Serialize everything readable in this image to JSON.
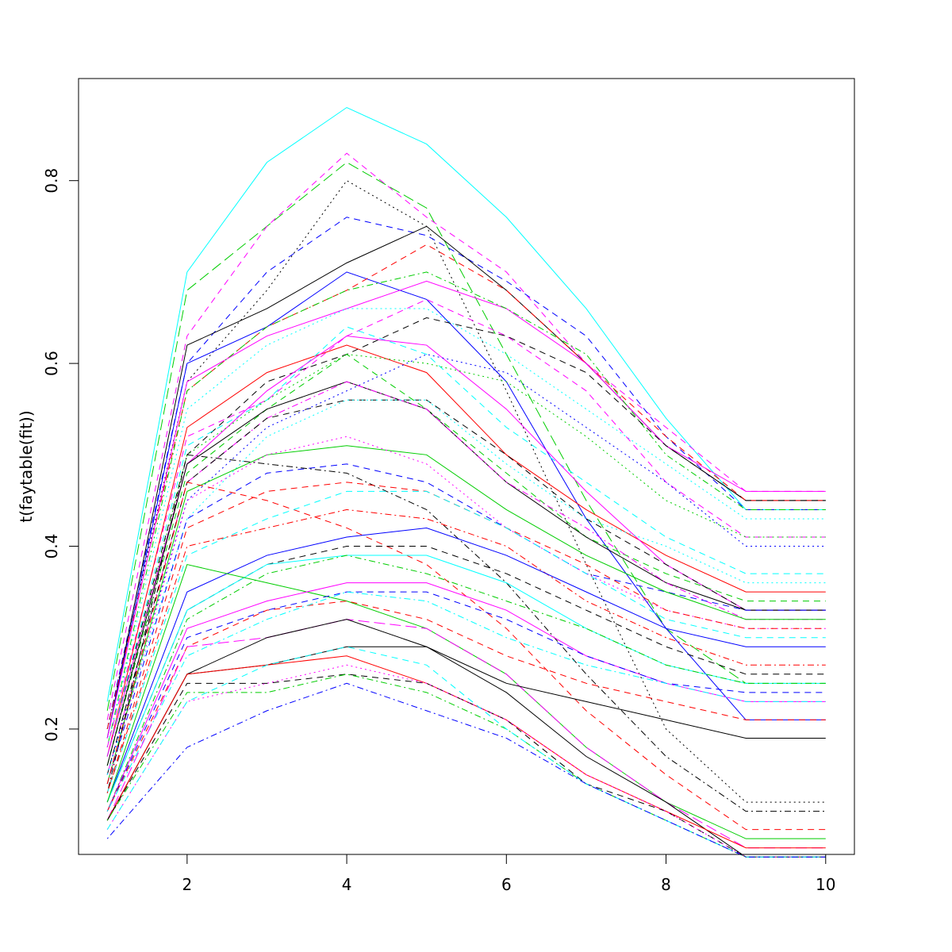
{
  "chart_data": {
    "type": "line",
    "title": "",
    "xlabel": "",
    "ylabel": "t(faytable(fit))",
    "xlim": [
      0.64,
      10.36
    ],
    "ylim": [
      0.0628,
      0.9117
    ],
    "x": [
      1,
      2,
      3,
      4,
      5,
      6,
      7,
      8,
      9,
      10
    ],
    "x_ticks": [
      2,
      4,
      6,
      8,
      10
    ],
    "y_ticks": [
      0.2,
      0.4,
      0.6,
      0.8
    ],
    "x_tick_labels": [
      "2",
      "4",
      "6",
      "8",
      "10"
    ],
    "y_tick_labels": [
      "0.2",
      "0.4",
      "0.6",
      "0.8"
    ],
    "grid": false,
    "legend": "none",
    "colors": [
      "#000000",
      "#ff0000",
      "#00cd00",
      "#0000ff",
      "#00ffff",
      "#ff00ff"
    ],
    "series": [
      {
        "values": [
          0.23,
          0.7,
          0.82,
          0.88,
          0.84,
          0.76,
          0.66,
          0.54,
          0.44,
          0.44
        ],
        "color": "#00ffff",
        "dash": "solid"
      },
      {
        "values": [
          0.22,
          0.68,
          0.75,
          0.82,
          0.77,
          0.61,
          0.45,
          0.31,
          0.25,
          0.25
        ],
        "color": "#00cd00",
        "dash": "longdash"
      },
      {
        "values": [
          0.21,
          0.63,
          0.75,
          0.83,
          0.76,
          0.7,
          0.6,
          0.53,
          0.46,
          0.46
        ],
        "color": "#ff00ff",
        "dash": "dashed"
      },
      {
        "values": [
          0.2,
          0.58,
          0.68,
          0.8,
          0.75,
          0.57,
          0.38,
          0.2,
          0.12,
          0.12
        ],
        "color": "#000000",
        "dash": "dotted"
      },
      {
        "values": [
          0.2,
          0.6,
          0.7,
          0.76,
          0.74,
          0.69,
          0.63,
          0.52,
          0.44,
          0.44
        ],
        "color": "#0000ff",
        "dash": "dashed"
      },
      {
        "values": [
          0.19,
          0.62,
          0.66,
          0.71,
          0.75,
          0.68,
          0.6,
          0.51,
          0.45,
          0.45
        ],
        "color": "#000000",
        "dash": "solid"
      },
      {
        "values": [
          0.19,
          0.6,
          0.64,
          0.7,
          0.67,
          0.58,
          0.43,
          0.31,
          0.21,
          0.21
        ],
        "color": "#0000ff",
        "dash": "solid"
      },
      {
        "values": [
          0.2,
          0.57,
          0.64,
          0.68,
          0.73,
          0.68,
          0.6,
          0.52,
          0.45,
          0.45
        ],
        "color": "#ff0000",
        "dash": "dashed"
      },
      {
        "values": [
          0.19,
          0.58,
          0.63,
          0.66,
          0.69,
          0.66,
          0.6,
          0.51,
          0.46,
          0.46
        ],
        "color": "#ff00ff",
        "dash": "solid"
      },
      {
        "values": [
          0.18,
          0.57,
          0.64,
          0.68,
          0.7,
          0.66,
          0.61,
          0.5,
          0.44,
          0.44
        ],
        "color": "#00cd00",
        "dash": "dotdash"
      },
      {
        "values": [
          0.18,
          0.55,
          0.62,
          0.66,
          0.66,
          0.61,
          0.55,
          0.49,
          0.43,
          0.43
        ],
        "color": "#00ffff",
        "dash": "dotted"
      },
      {
        "values": [
          0.18,
          0.52,
          0.56,
          0.63,
          0.67,
          0.63,
          0.57,
          0.47,
          0.41,
          0.41
        ],
        "color": "#ff00ff",
        "dash": "dashed"
      },
      {
        "values": [
          0.17,
          0.5,
          0.58,
          0.61,
          0.65,
          0.63,
          0.59,
          0.51,
          0.45,
          0.45
        ],
        "color": "#000000",
        "dash": "dashed"
      },
      {
        "values": [
          0.17,
          0.53,
          0.59,
          0.62,
          0.59,
          0.5,
          0.44,
          0.39,
          0.35,
          0.35
        ],
        "color": "#ff0000",
        "dash": "solid"
      },
      {
        "values": [
          0.17,
          0.51,
          0.56,
          0.64,
          0.61,
          0.53,
          0.47,
          0.41,
          0.37,
          0.37
        ],
        "color": "#00ffff",
        "dash": "dashed"
      },
      {
        "values": [
          0.17,
          0.49,
          0.57,
          0.63,
          0.62,
          0.55,
          0.46,
          0.38,
          0.33,
          0.33
        ],
        "color": "#ff00ff",
        "dash": "solid"
      },
      {
        "values": [
          0.16,
          0.5,
          0.56,
          0.61,
          0.6,
          0.58,
          0.52,
          0.45,
          0.41,
          0.41
        ],
        "color": "#00cd00",
        "dash": "dotted"
      },
      {
        "values": [
          0.16,
          0.48,
          0.55,
          0.61,
          0.55,
          0.48,
          0.41,
          0.37,
          0.34,
          0.34
        ],
        "color": "#00cd00",
        "dash": "dashed"
      },
      {
        "values": [
          0.16,
          0.49,
          0.55,
          0.58,
          0.55,
          0.47,
          0.41,
          0.36,
          0.33,
          0.33
        ],
        "color": "#000000",
        "dash": "solid"
      },
      {
        "values": [
          0.15,
          0.47,
          0.54,
          0.58,
          0.55,
          0.47,
          0.42,
          0.36,
          0.32,
          0.32
        ],
        "color": "#ff00ff",
        "dash": "dotdash"
      },
      {
        "values": [
          0.15,
          0.47,
          0.54,
          0.56,
          0.56,
          0.5,
          0.43,
          0.38,
          0.33,
          0.33
        ],
        "color": "#000000",
        "dash": "dashed"
      },
      {
        "values": [
          0.15,
          0.45,
          0.53,
          0.57,
          0.61,
          0.59,
          0.53,
          0.47,
          0.4,
          0.4
        ],
        "color": "#0000ff",
        "dash": "dotted"
      },
      {
        "values": [
          0.15,
          0.43,
          0.52,
          0.56,
          0.56,
          0.49,
          0.43,
          0.4,
          0.36,
          0.36
        ],
        "color": "#00ffff",
        "dash": "dotted"
      },
      {
        "values": [
          0.14,
          0.43,
          0.48,
          0.49,
          0.47,
          0.42,
          0.37,
          0.35,
          0.33,
          0.33
        ],
        "color": "#0000ff",
        "dash": "dashed"
      },
      {
        "values": [
          0.14,
          0.46,
          0.5,
          0.51,
          0.5,
          0.44,
          0.39,
          0.35,
          0.32,
          0.32
        ],
        "color": "#00cd00",
        "dash": "solid"
      },
      {
        "values": [
          0.14,
          0.45,
          0.5,
          0.52,
          0.49,
          0.42,
          0.37,
          0.33,
          0.31,
          0.31
        ],
        "color": "#ff00ff",
        "dash": "dotted"
      },
      {
        "values": [
          0.14,
          0.47,
          0.45,
          0.42,
          0.38,
          0.31,
          0.22,
          0.15,
          0.09,
          0.09
        ],
        "color": "#ff0000",
        "dash": "dashed"
      },
      {
        "values": [
          0.13,
          0.5,
          0.49,
          0.48,
          0.44,
          0.36,
          0.26,
          0.17,
          0.11,
          0.11
        ],
        "color": "#000000",
        "dash": "dotdash"
      },
      {
        "values": [
          0.13,
          0.42,
          0.46,
          0.47,
          0.46,
          0.42,
          0.38,
          0.33,
          0.31,
          0.31
        ],
        "color": "#ff0000",
        "dash": "dashed"
      },
      {
        "values": [
          0.13,
          0.39,
          0.43,
          0.46,
          0.46,
          0.42,
          0.37,
          0.32,
          0.3,
          0.3
        ],
        "color": "#00ffff",
        "dash": "dashed"
      },
      {
        "values": [
          0.13,
          0.4,
          0.42,
          0.44,
          0.43,
          0.4,
          0.34,
          0.3,
          0.27,
          0.27
        ],
        "color": "#ff0000",
        "dash": "dotdash"
      },
      {
        "values": [
          0.12,
          0.35,
          0.39,
          0.41,
          0.42,
          0.39,
          0.35,
          0.31,
          0.29,
          0.29
        ],
        "color": "#0000ff",
        "dash": "solid"
      },
      {
        "values": [
          0.12,
          0.33,
          0.38,
          0.4,
          0.4,
          0.37,
          0.33,
          0.29,
          0.26,
          0.26
        ],
        "color": "#000000",
        "dash": "dashed"
      },
      {
        "values": [
          0.12,
          0.33,
          0.38,
          0.39,
          0.39,
          0.36,
          0.31,
          0.27,
          0.25,
          0.25
        ],
        "color": "#00ffff",
        "dash": "solid"
      },
      {
        "values": [
          0.12,
          0.38,
          0.36,
          0.34,
          0.31,
          0.26,
          0.18,
          0.12,
          0.08,
          0.08
        ],
        "color": "#00cd00",
        "dash": "solid"
      },
      {
        "values": [
          0.11,
          0.32,
          0.37,
          0.39,
          0.37,
          0.34,
          0.31,
          0.27,
          0.25,
          0.25
        ],
        "color": "#00cd00",
        "dash": "dotdash"
      },
      {
        "values": [
          0.11,
          0.31,
          0.34,
          0.36,
          0.36,
          0.33,
          0.28,
          0.25,
          0.23,
          0.23
        ],
        "color": "#ff00ff",
        "dash": "solid"
      },
      {
        "values": [
          0.11,
          0.3,
          0.33,
          0.35,
          0.35,
          0.32,
          0.28,
          0.25,
          0.24,
          0.24
        ],
        "color": "#0000ff",
        "dash": "dashed"
      },
      {
        "values": [
          0.11,
          0.29,
          0.33,
          0.34,
          0.32,
          0.28,
          0.25,
          0.23,
          0.21,
          0.21
        ],
        "color": "#ff0000",
        "dash": "dashed"
      },
      {
        "values": [
          0.11,
          0.28,
          0.32,
          0.35,
          0.34,
          0.3,
          0.27,
          0.25,
          0.23,
          0.23
        ],
        "color": "#00ffff",
        "dash": "dotdash"
      },
      {
        "values": [
          0.1,
          0.29,
          0.3,
          0.32,
          0.31,
          0.26,
          0.18,
          0.12,
          0.07,
          0.07
        ],
        "color": "#ff00ff",
        "dash": "longdash"
      },
      {
        "values": [
          0.1,
          0.26,
          0.3,
          0.32,
          0.29,
          0.24,
          0.17,
          0.12,
          0.06,
          0.06
        ],
        "color": "#000000",
        "dash": "solid"
      },
      {
        "values": [
          0.1,
          0.26,
          0.27,
          0.29,
          0.29,
          0.25,
          0.23,
          0.21,
          0.19,
          0.19
        ],
        "color": "#000000",
        "dash": "solid"
      },
      {
        "values": [
          0.1,
          0.26,
          0.27,
          0.28,
          0.25,
          0.21,
          0.15,
          0.11,
          0.07,
          0.07
        ],
        "color": "#ff0000",
        "dash": "solid"
      },
      {
        "values": [
          0.1,
          0.25,
          0.25,
          0.26,
          0.25,
          0.21,
          0.14,
          0.11,
          0.06,
          0.06
        ],
        "color": "#000000",
        "dash": "dashed"
      },
      {
        "values": [
          0.1,
          0.24,
          0.24,
          0.26,
          0.24,
          0.2,
          0.14,
          0.1,
          0.06,
          0.06
        ],
        "color": "#00cd00",
        "dash": "dotdash"
      },
      {
        "values": [
          0.09,
          0.23,
          0.25,
          0.27,
          0.25,
          0.21,
          0.15,
          0.11,
          0.06,
          0.06
        ],
        "color": "#ff00ff",
        "dash": "dotted"
      },
      {
        "values": [
          0.09,
          0.23,
          0.27,
          0.29,
          0.27,
          0.2,
          0.14,
          0.1,
          0.06,
          0.06
        ],
        "color": "#00ffff",
        "dash": "dashed"
      },
      {
        "values": [
          0.08,
          0.18,
          0.22,
          0.25,
          0.22,
          0.19,
          0.14,
          0.1,
          0.06,
          0.06
        ],
        "color": "#0000ff",
        "dash": "dotdash"
      }
    ]
  }
}
